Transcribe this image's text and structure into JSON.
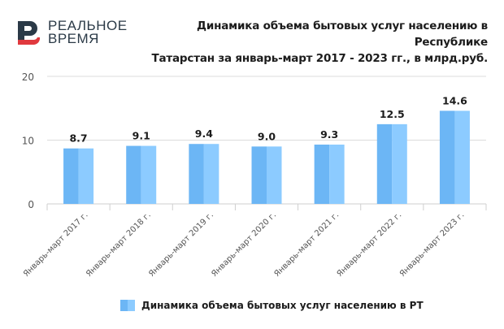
{
  "brand": {
    "logo_line1": "РЕАЛЬНОЕ",
    "logo_line2": "ВРЕМЯ",
    "colors": {
      "dark": "#2b3a47",
      "red": "#e0393e"
    }
  },
  "chart_data": {
    "type": "bar",
    "title_line1": "Динамика объема бытовых услуг населению в Республике",
    "title_line2": "Татарстан за январь-март 2017 - 2023 гг., в млрд.руб.",
    "categories": [
      "Январь-март 2017 г.",
      "Январь-март 2018 г.",
      "Январь-март 2019 г.",
      "Январь-март 2020 г.",
      "Январь-март 2021 г.",
      "Январь-март 2022 г.",
      "Январь-март 2023 г."
    ],
    "series": [
      {
        "name": "Динамика объема бытовых услуг населению в РТ",
        "values": [
          8.7,
          9.1,
          9.4,
          9.0,
          9.3,
          12.5,
          14.6
        ],
        "labels": [
          "8.7",
          "9.1",
          "9.4",
          "9.0",
          "9.3",
          "12.5",
          "14.6"
        ]
      }
    ],
    "yticks": [
      "0",
      "10",
      "20"
    ],
    "ytick_values": [
      0,
      10,
      20
    ],
    "ylim": [
      0,
      20
    ],
    "xlabel": "",
    "ylabel": "",
    "grid": true,
    "legend_position": "bottom",
    "colors": {
      "bar_dark": "#6cb6f5",
      "bar_light": "#8ccbff",
      "grid": "#dcdcdc"
    }
  }
}
